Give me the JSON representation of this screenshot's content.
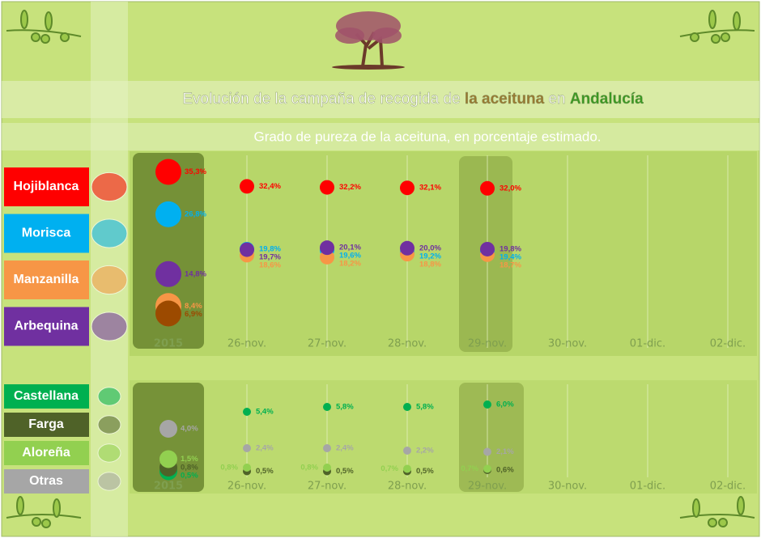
{
  "header": {
    "title_parts": [
      "Evolución de la campaña de recogida de",
      "la aceituna",
      "en",
      "Andalucía"
    ],
    "subtitle": "Grado de pureza de la aceituna, en porcentaje estimado."
  },
  "chart_data": [
    {
      "type": "dot",
      "categories": [
        "2015",
        "26-nov.",
        "27-nov.",
        "28-nov.",
        "29-nov.",
        "30-nov.",
        "01-dic.",
        "02-dic."
      ],
      "ylim": [
        0,
        37
      ],
      "series": [
        {
          "name": "Hojiblanca",
          "color": "#ff0000",
          "values": [
            35.3,
            32.4,
            32.2,
            32.1,
            32.0,
            null,
            null,
            null
          ],
          "value_labels": [
            "35,3%",
            "32,4%",
            "32,2%",
            "32,1%",
            "32,0%",
            null,
            null,
            null
          ]
        },
        {
          "name": "Morisca",
          "color": "#00b0f0",
          "values": [
            26.8,
            19.8,
            19.6,
            19.2,
            19.4,
            null,
            null,
            null
          ],
          "value_labels": [
            "26,8%",
            "19,8%",
            "19,6%",
            "19,2%",
            "19,4%",
            null,
            null,
            null
          ]
        },
        {
          "name": "Manzanilla",
          "color": "#f79646",
          "values": [
            8.4,
            18.6,
            18.2,
            18.8,
            18.7,
            null,
            null,
            null
          ],
          "value_labels": [
            "8,4%",
            "18,6%",
            "18,2%",
            "18,8%",
            "18,7%",
            null,
            null,
            null
          ]
        },
        {
          "name": "Arbequina",
          "color": "#7030a0",
          "values": [
            14.8,
            19.7,
            20.1,
            20.0,
            19.8,
            null,
            null,
            null
          ],
          "value_labels": [
            "14,8%",
            "19,7%",
            "20,1%",
            "20,0%",
            "19,8%",
            null,
            null,
            null
          ]
        },
        {
          "color": "#9c4a00",
          "values": [
            6.9,
            null,
            null,
            null,
            null,
            null,
            null,
            null
          ],
          "value_labels": [
            "6,9%",
            null,
            null,
            null,
            null,
            null,
            null,
            null
          ]
        }
      ]
    },
    {
      "type": "dot",
      "categories": [
        "2015",
        "26-nov.",
        "27-nov.",
        "28-nov.",
        "29-nov.",
        "30-nov.",
        "01-dic.",
        "02-dic."
      ],
      "ylim": [
        0,
        7
      ],
      "series": [
        {
          "name": "Castellana",
          "color": "#00b050",
          "values": [
            0.5,
            5.4,
            5.8,
            5.8,
            6.0,
            null,
            null,
            null
          ],
          "value_labels": [
            "0,5%",
            "5,4%",
            "5,8%",
            "5,8%",
            "6,0%",
            null,
            null,
            null
          ]
        },
        {
          "name": "Farga",
          "color": "#4f6228",
          "values": [
            0.8,
            0.5,
            0.5,
            0.5,
            0.6,
            null,
            null,
            null
          ],
          "value_labels": [
            "0,8%",
            "0,5%",
            "0,5%",
            "0,5%",
            "0,6%",
            null,
            null,
            null
          ]
        },
        {
          "name": "Aloreña",
          "color": "#92d050",
          "values": [
            1.5,
            0.8,
            0.8,
            0.7,
            0.7,
            null,
            null,
            null
          ],
          "value_labels": [
            "1,5%",
            "0,8%",
            "0,8%",
            "0,7%",
            "0,7%",
            null,
            null,
            null
          ]
        },
        {
          "name": "Otras",
          "color": "#a6a6a6",
          "values": [
            4.0,
            2.4,
            2.4,
            2.2,
            2.1,
            null,
            null,
            null
          ],
          "value_labels": [
            "4,0%",
            "2,4%",
            "2,4%",
            "2,2%",
            "2,1%",
            null,
            null,
            null
          ]
        }
      ]
    }
  ]
}
